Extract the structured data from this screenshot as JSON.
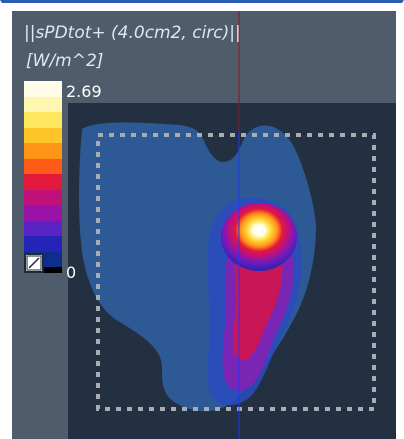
{
  "legend": {
    "title": "||sPDtot+ (4.0cm2, circ)||",
    "unit": "[W/m^2]",
    "max_label": "2.69",
    "min_label": "0",
    "colors": [
      "#fffce8",
      "#fff6b0",
      "#ffe860",
      "#ffc62a",
      "#ff9419",
      "#ff5b18",
      "#e2193a",
      "#c0107a",
      "#9a12a8",
      "#5a23c3",
      "#2424b8",
      "#0f2d8a"
    ]
  },
  "toolbar": {
    "toggle_icon": "slash-square-icon"
  },
  "plot": {
    "background": "#233042",
    "guide_colors": {
      "vertical": "#1e37ff",
      "vertical_top": "#8a1d1d"
    }
  }
}
